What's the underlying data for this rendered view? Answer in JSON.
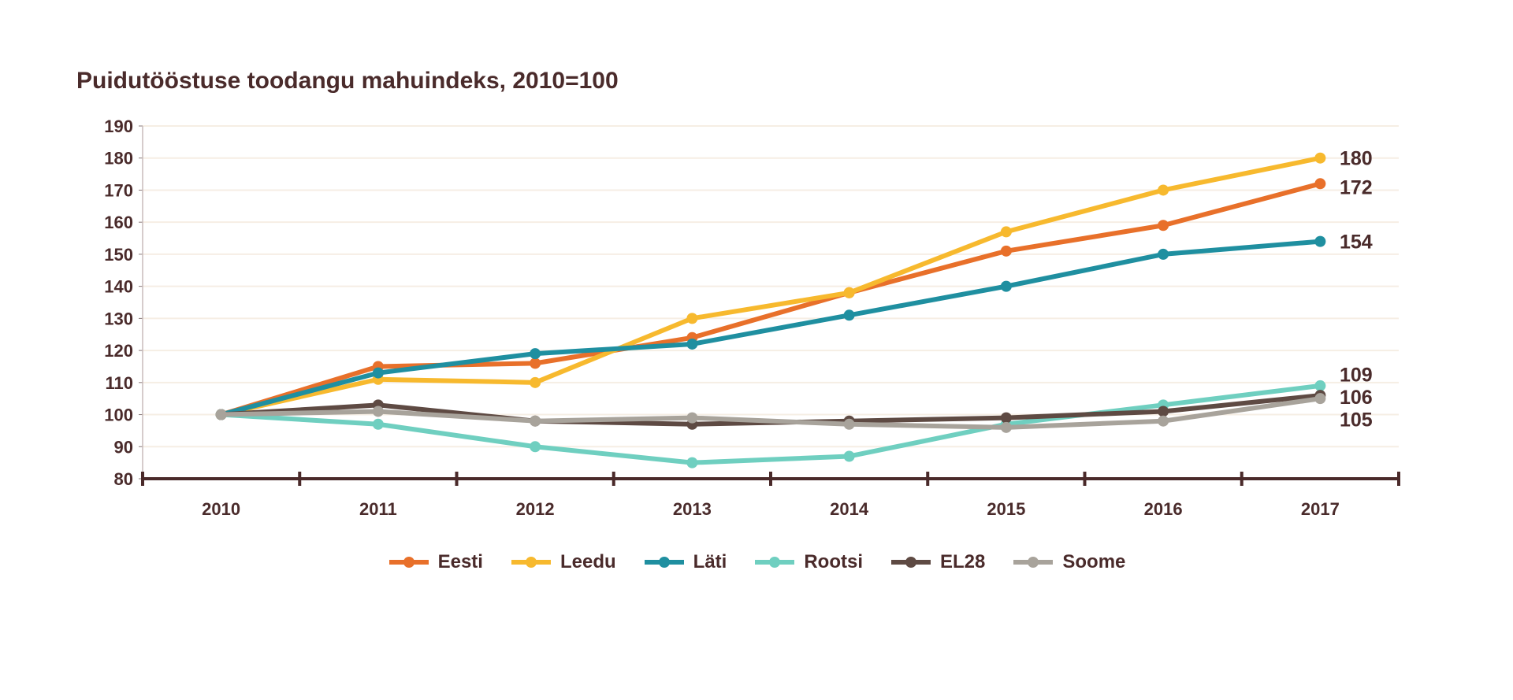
{
  "chart_data": {
    "type": "line",
    "title": "Puidutööstuse toodangu mahuindeks, 2010=100",
    "xlabel": "",
    "ylabel": "",
    "categories": [
      "2010",
      "2011",
      "2012",
      "2013",
      "2014",
      "2015",
      "2016",
      "2017"
    ],
    "ylim": [
      80,
      190
    ],
    "yticks": [
      80,
      90,
      100,
      110,
      120,
      130,
      140,
      150,
      160,
      170,
      180,
      190
    ],
    "grid": true,
    "legend": "bottom",
    "series": [
      {
        "name": "Eesti",
        "color": "#e8702a",
        "values": [
          100,
          115,
          116,
          124,
          138,
          151,
          159,
          172
        ],
        "end_label": "172"
      },
      {
        "name": "Leedu",
        "color": "#f7b92e",
        "values": [
          100,
          111,
          110,
          130,
          138,
          157,
          170,
          180
        ],
        "end_label": "180"
      },
      {
        "name": "Läti",
        "color": "#1f8fa0",
        "values": [
          100,
          113,
          119,
          122,
          131,
          140,
          150,
          154
        ],
        "end_label": "154"
      },
      {
        "name": "Rootsi",
        "color": "#6fcfc0",
        "values": [
          100,
          97,
          90,
          85,
          87,
          97,
          103,
          109
        ],
        "end_label": "109"
      },
      {
        "name": "EL28",
        "color": "#5e4a43",
        "values": [
          100,
          103,
          98,
          97,
          98,
          99,
          101,
          106
        ],
        "end_label": "106"
      },
      {
        "name": "Soome",
        "color": "#a8a39b",
        "values": [
          100,
          101,
          98,
          99,
          97,
          96,
          98,
          105
        ],
        "end_label": "105"
      }
    ]
  }
}
